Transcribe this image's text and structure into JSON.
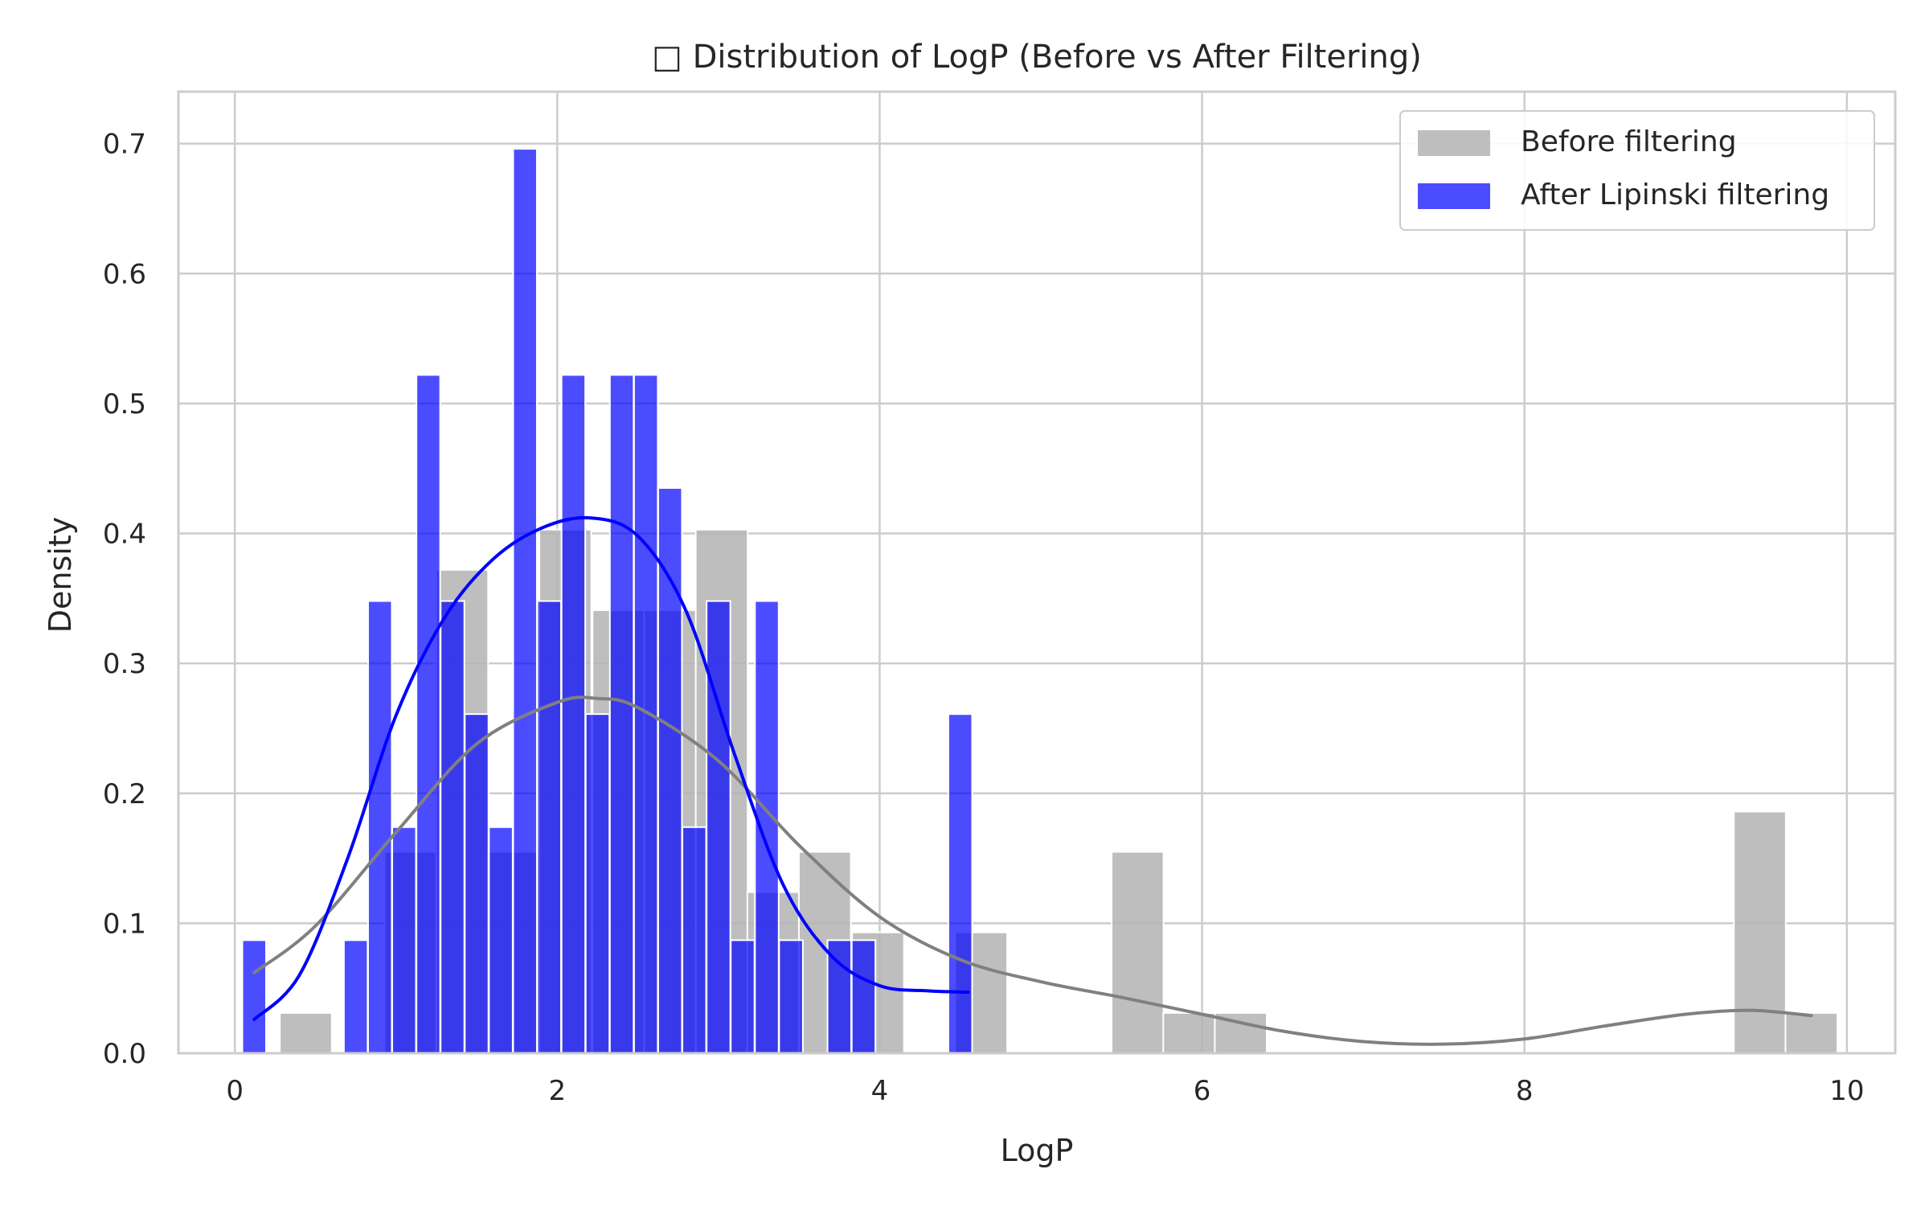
{
  "chart_data": {
    "type": "bar",
    "title": "□ Distribution of LogP (Before vs After Filtering)",
    "xlabel": "LogP",
    "ylabel": "Density",
    "xlim": [
      -0.35,
      10.3
    ],
    "ylim": [
      0,
      0.74
    ],
    "xticks": [
      "0",
      "2",
      "4",
      "6",
      "8",
      "10"
    ],
    "xtick_values": [
      0,
      2,
      4,
      6,
      8,
      10
    ],
    "yticks": [
      "0.0",
      "0.1",
      "0.2",
      "0.3",
      "0.4",
      "0.5",
      "0.6",
      "0.7"
    ],
    "ytick_values": [
      0,
      0.1,
      0.2,
      0.3,
      0.4,
      0.5,
      0.6,
      0.7
    ],
    "grid": true,
    "legend_position": "top-right",
    "series": [
      {
        "name": "Before filtering",
        "color": "#b3b3b3",
        "kind": "histogram",
        "bin_width": 0.322,
        "bins": [
          {
            "x": 0.12,
            "density": 0.0
          },
          {
            "x": 0.44,
            "density": 0.031
          },
          {
            "x": 0.77,
            "density": 0.0
          },
          {
            "x": 1.09,
            "density": 0.155
          },
          {
            "x": 1.41,
            "density": 0.372
          },
          {
            "x": 1.73,
            "density": 0.155
          },
          {
            "x": 2.05,
            "density": 0.403
          },
          {
            "x": 2.38,
            "density": 0.341
          },
          {
            "x": 2.7,
            "density": 0.341
          },
          {
            "x": 3.02,
            "density": 0.403
          },
          {
            "x": 3.34,
            "density": 0.124
          },
          {
            "x": 3.66,
            "density": 0.155
          },
          {
            "x": 3.99,
            "density": 0.093
          },
          {
            "x": 4.31,
            "density": 0.0
          },
          {
            "x": 4.63,
            "density": 0.093
          },
          {
            "x": 4.95,
            "density": 0.0
          },
          {
            "x": 5.27,
            "density": 0.0
          },
          {
            "x": 5.6,
            "density": 0.155
          },
          {
            "x": 5.92,
            "density": 0.031
          },
          {
            "x": 6.24,
            "density": 0.031
          },
          {
            "x": 9.13,
            "density": 0.0
          },
          {
            "x": 9.46,
            "density": 0.186
          },
          {
            "x": 9.78,
            "density": 0.031
          }
        ],
        "kde_x": [
          0.12,
          0.5,
          1.0,
          1.5,
          2.0,
          2.25,
          2.5,
          3.0,
          3.5,
          4.0,
          4.5,
          5.0,
          5.5,
          6.0,
          6.5,
          7.0,
          7.5,
          8.0,
          8.5,
          9.0,
          9.4,
          9.78
        ],
        "kde_y": [
          0.062,
          0.098,
          0.17,
          0.238,
          0.27,
          0.273,
          0.266,
          0.225,
          0.16,
          0.105,
          0.072,
          0.055,
          0.043,
          0.03,
          0.017,
          0.009,
          0.007,
          0.011,
          0.021,
          0.03,
          0.033,
          0.029
        ]
      },
      {
        "name": "After Lipinski filtering",
        "color": "#0000ff",
        "kind": "histogram",
        "bin_width": 0.147,
        "bins": [
          {
            "x": 0.12,
            "density": 0.087
          },
          {
            "x": 0.75,
            "density": 0.087
          },
          {
            "x": 0.9,
            "density": 0.348
          },
          {
            "x": 1.05,
            "density": 0.174
          },
          {
            "x": 1.2,
            "density": 0.522
          },
          {
            "x": 1.35,
            "density": 0.348
          },
          {
            "x": 1.5,
            "density": 0.261
          },
          {
            "x": 1.65,
            "density": 0.174
          },
          {
            "x": 1.8,
            "density": 0.696
          },
          {
            "x": 1.95,
            "density": 0.348
          },
          {
            "x": 2.1,
            "density": 0.522
          },
          {
            "x": 2.25,
            "density": 0.261
          },
          {
            "x": 2.4,
            "density": 0.522
          },
          {
            "x": 2.55,
            "density": 0.522
          },
          {
            "x": 2.7,
            "density": 0.435
          },
          {
            "x": 2.85,
            "density": 0.174
          },
          {
            "x": 3.0,
            "density": 0.348
          },
          {
            "x": 3.15,
            "density": 0.087
          },
          {
            "x": 3.3,
            "density": 0.348
          },
          {
            "x": 3.45,
            "density": 0.087
          },
          {
            "x": 3.75,
            "density": 0.087
          },
          {
            "x": 3.9,
            "density": 0.087
          },
          {
            "x": 4.5,
            "density": 0.261
          }
        ],
        "kde_x": [
          0.12,
          0.4,
          0.7,
          1.0,
          1.3,
          1.6,
          1.9,
          2.2,
          2.5,
          2.8,
          3.1,
          3.4,
          3.7,
          4.0,
          4.3,
          4.55
        ],
        "kde_y": [
          0.026,
          0.06,
          0.15,
          0.26,
          0.335,
          0.38,
          0.404,
          0.412,
          0.398,
          0.34,
          0.23,
          0.13,
          0.075,
          0.052,
          0.048,
          0.047
        ]
      }
    ]
  }
}
